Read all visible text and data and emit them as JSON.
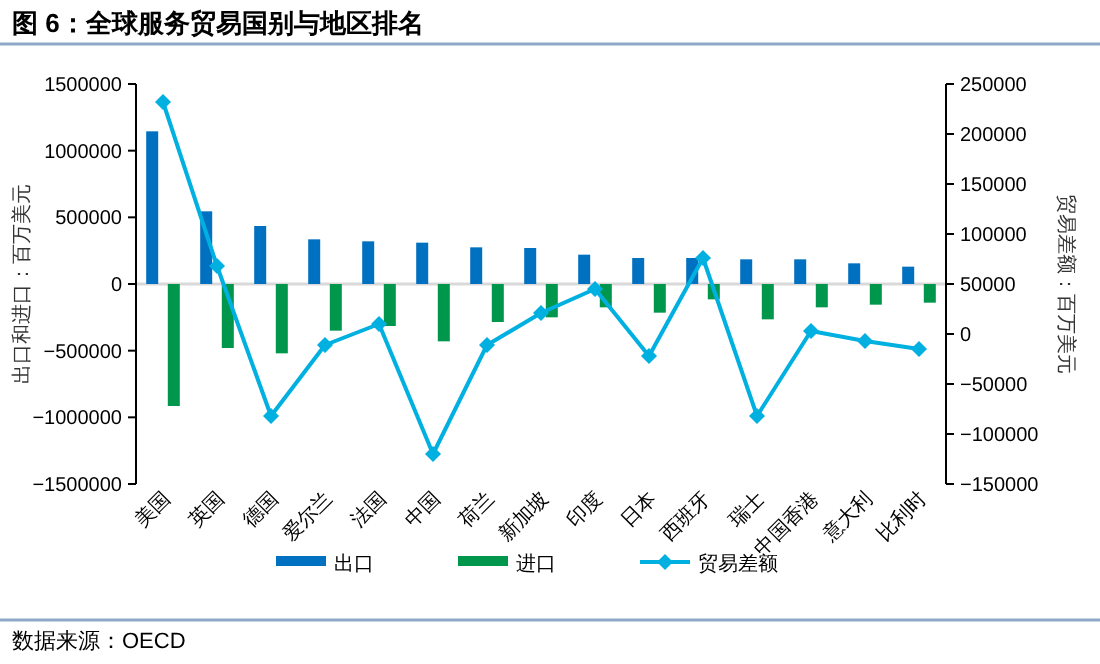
{
  "chart_data": {
    "type": "bar",
    "title": "图 6：全球服务贸易国别与地区排名",
    "ylabel": "出口和进口：百万美元",
    "y2label": "贸易差额：百万美元",
    "annotations": [
      "数据来源：OECD"
    ],
    "categories": [
      "美国",
      "英国",
      "德国",
      "爱尔兰",
      "法国",
      "中国",
      "荷兰",
      "新加坡",
      "印度",
      "日本",
      "西班牙",
      "瑞士",
      "中国香港",
      "意大利",
      "比利时"
    ],
    "series": [
      {
        "name": "出口",
        "color": "#0070c0",
        "values": [
          1145000,
          545000,
          435000,
          335000,
          320000,
          310000,
          275000,
          270000,
          220000,
          195000,
          195000,
          185000,
          185000,
          155000,
          130000
        ]
      },
      {
        "name": "进口",
        "color": "#00964b",
        "values": [
          -915000,
          -480000,
          -520000,
          -350000,
          -315000,
          -430000,
          -285000,
          -250000,
          -175000,
          -215000,
          -115000,
          -265000,
          -175000,
          -155000,
          -140000
        ]
      },
      {
        "name": "贸易差额",
        "type": "line",
        "axis": "y2",
        "color": "#00b0e0",
        "marker": "diamond",
        "values": [
          232000,
          68000,
          -82000,
          -11000,
          10000,
          -120000,
          -11000,
          21000,
          45000,
          -22000,
          76000,
          -82000,
          3000,
          -7000,
          -15000
        ]
      }
    ],
    "ylim": [
      -1500000,
      1500000
    ],
    "yticks": [
      -1500000,
      -1000000,
      -500000,
      0,
      500000,
      1000000,
      1500000
    ],
    "y2lim": [
      -150000,
      250000
    ],
    "y2ticks": [
      -150000,
      -100000,
      -50000,
      0,
      50000,
      100000,
      150000,
      200000,
      250000
    ],
    "ref_lines": [
      {
        "axis": "y",
        "value": 0,
        "color": "#d9d9d9"
      }
    ],
    "legend": "bottom",
    "grid": false
  }
}
